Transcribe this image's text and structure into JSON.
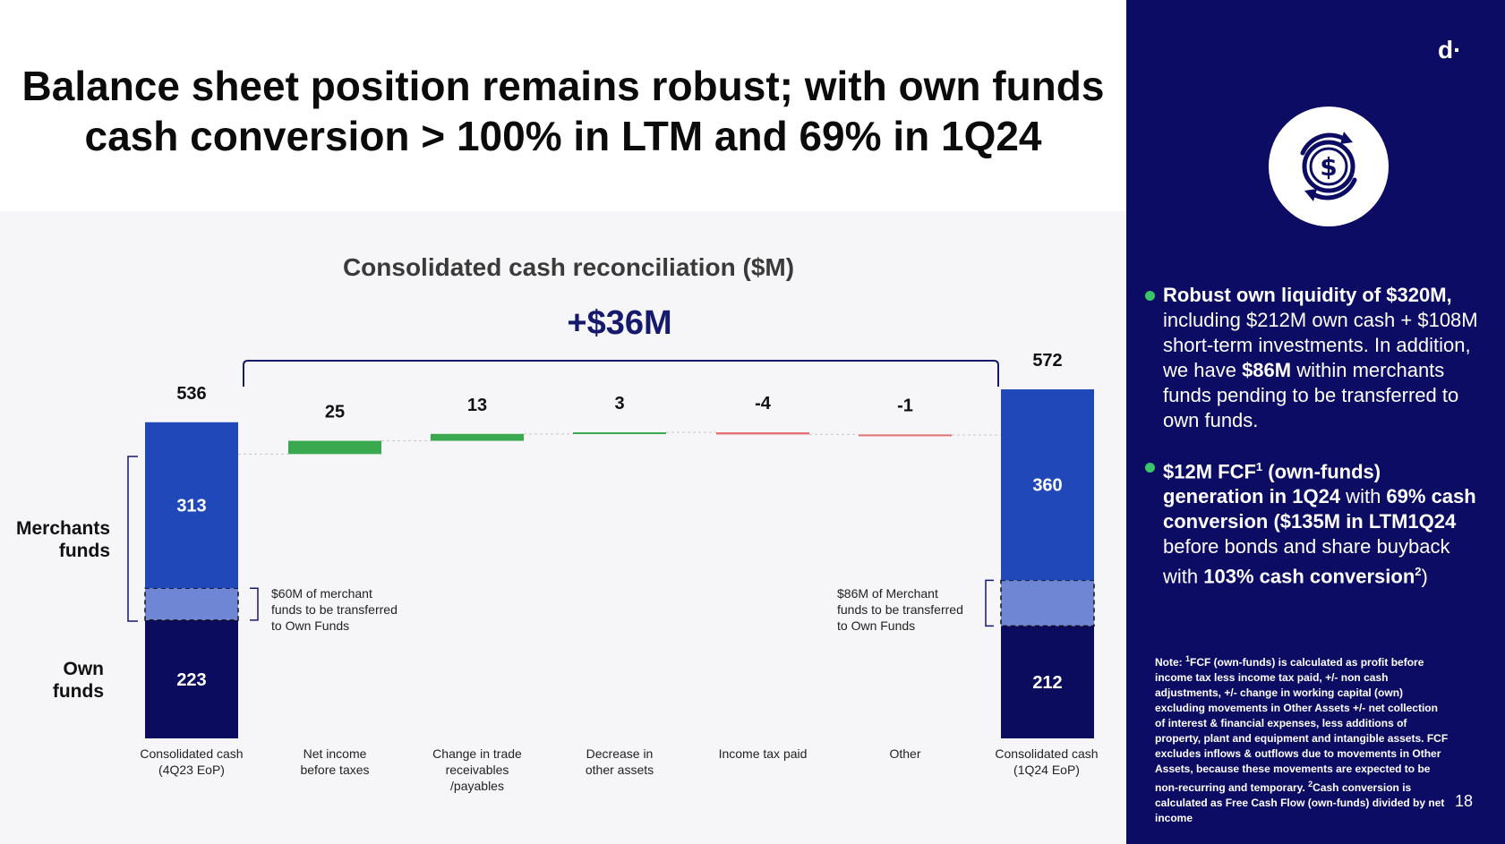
{
  "slide": {
    "title_line1": "Balance sheet position remains robust; with own funds",
    "title_line2": "cash conversion > 100% in LTM and 69% in 1Q24",
    "page_number": "18",
    "logo_text": "d·"
  },
  "chart_data": {
    "type": "waterfall",
    "title": "Consolidated cash reconciliation ($M)",
    "delta_label": "+$36M",
    "categories": [
      "Consolidated cash (4Q23 EoP)",
      "Net income before taxes",
      "Change in trade receivables /payables",
      "Decrease in other assets",
      "Income tax paid",
      "Other",
      "Consolidated cash (1Q24 EoP)"
    ],
    "category_lines": [
      [
        "Consolidated cash",
        "(4Q23 EoP)"
      ],
      [
        "Net income",
        "before taxes"
      ],
      [
        "Change in trade",
        "receivables",
        "/payables"
      ],
      [
        "Decrease in",
        "other assets"
      ],
      [
        "Income tax paid"
      ],
      [
        "Other"
      ],
      [
        "Consolidated cash",
        "(1Q24 EoP)"
      ]
    ],
    "values": [
      536,
      25,
      13,
      3,
      -4,
      -1,
      572
    ],
    "value_labels": [
      "536",
      "25",
      "13",
      "3",
      "-4",
      "-1",
      "572"
    ],
    "start_breakdown": {
      "merchants_funds": 313,
      "transfer_pending": 60,
      "own_funds": 223
    },
    "end_breakdown": {
      "merchants_funds": 360,
      "transfer_pending": 86,
      "own_funds": 212
    },
    "segment_labels": {
      "start_merchants": "313",
      "start_own": "223",
      "end_merchants": "360",
      "end_own": "212"
    },
    "side_labels": {
      "merchants_line1": "Merchants",
      "merchants_line2": "funds",
      "own_line1": "Own",
      "own_line2": "funds"
    },
    "annotations": {
      "start": [
        "$60M of merchant",
        "funds to be transferred",
        "to Own Funds"
      ],
      "end": [
        "$86M of Merchant",
        "funds to be transferred",
        "to Own Funds"
      ]
    },
    "colors": {
      "merchants": "#2148b8",
      "transfer": "#6e86d4",
      "own": "#0c0c5e",
      "positive": "#3aa84f",
      "negative": "#e0706e"
    }
  },
  "sidebar": {
    "bullet1": {
      "bold_a": "Robust own liquidity of $320M,",
      "text_a": " including $212M own cash + $108M short-term investments. In addition, we have ",
      "bold_b": "$86M",
      "text_b": " within merchants funds pending to be transferred to own funds."
    },
    "bullet2": {
      "bold_a": "$12M FCF",
      "sup_a": "1",
      "bold_b": " (own-funds) generation in 1Q24",
      "text_a": " with ",
      "bold_c": "69% cash conversion ($135M in LTM1Q24",
      "text_b": " before bonds and share buyback with ",
      "bold_d": "103% cash conversion",
      "sup_b": "2",
      "text_c": ")"
    },
    "footnote": {
      "note_label": "Note: ",
      "sup1": "1",
      "text1": "FCF (own-funds) is calculated as profit before income tax less income tax paid, +/- non cash adjustments, +/- change in working capital (own) excluding movements in Other Assets +/-  net collection of interest & financial expenses, less additions of property, plant and equipment and intangible assets. FCF excludes inflows & outflows due to movements in Other Assets, because these movements are expected to be non-recurring and temporary. ",
      "sup2": "2",
      "text2": "Cash conversion is calculated as Free Cash Flow (own-funds) divided by net income"
    }
  }
}
